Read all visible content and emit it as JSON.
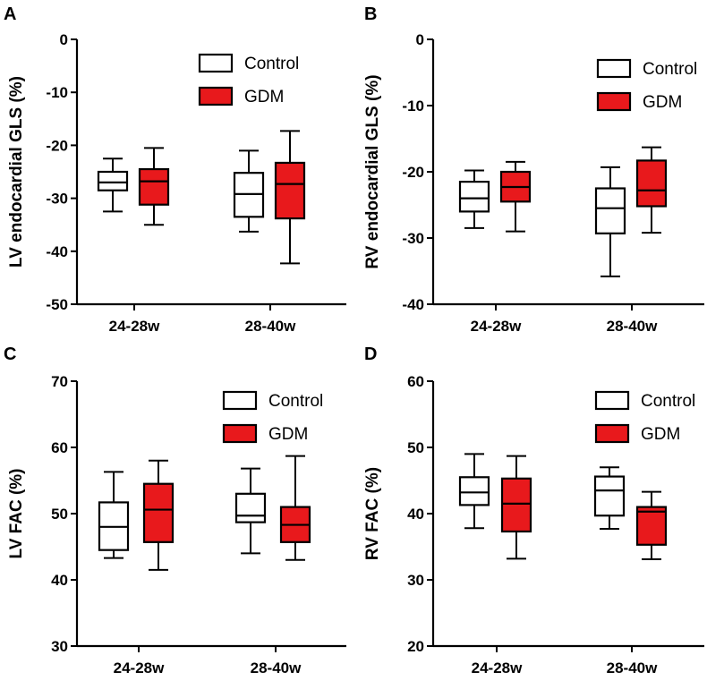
{
  "colors": {
    "control": "#ffffff",
    "gdm": "#e8191c",
    "stroke": "#000000"
  },
  "chart_data": [
    {
      "panel": "A",
      "type": "box",
      "ylabel": "LV endocardial GLS (%)",
      "ylim": [
        -50,
        0
      ],
      "yticks": [
        "0",
        "-10",
        "-20",
        "-30",
        "-40",
        "-50"
      ],
      "yticks_values": [
        0,
        -10,
        -20,
        -30,
        -40,
        -50
      ],
      "categories": [
        "24-28w",
        "28-40w"
      ],
      "legend": [
        "Control",
        "GDM"
      ],
      "series": [
        {
          "name": "Control",
          "boxes": [
            {
              "min": -32.5,
              "q1": -28.5,
              "median": -27,
              "q3": -25,
              "max": -22.5
            },
            {
              "min": -36.3,
              "q1": -33.5,
              "median": -29.2,
              "q3": -25.2,
              "max": -21
            }
          ]
        },
        {
          "name": "GDM",
          "boxes": [
            {
              "min": -35,
              "q1": -31.2,
              "median": -26.8,
              "q3": -24.5,
              "max": -20.5
            },
            {
              "min": -42.3,
              "q1": -33.8,
              "median": -27.3,
              "q3": -23.3,
              "max": -17.3
            }
          ]
        }
      ]
    },
    {
      "panel": "B",
      "type": "box",
      "ylabel": "RV endocardial GLS (%)",
      "ylim": [
        -40,
        0
      ],
      "yticks": [
        "0",
        "-10",
        "-20",
        "-30",
        "-40"
      ],
      "yticks_values": [
        0,
        -10,
        -20,
        -30,
        -40
      ],
      "categories": [
        "24-28w",
        "28-40w"
      ],
      "legend": [
        "Control",
        "GDM"
      ],
      "series": [
        {
          "name": "Control",
          "boxes": [
            {
              "min": -28.5,
              "q1": -26,
              "median": -24,
              "q3": -21.5,
              "max": -19.8
            },
            {
              "min": -35.8,
              "q1": -29.3,
              "median": -25.5,
              "q3": -22.5,
              "max": -19.3
            }
          ]
        },
        {
          "name": "GDM",
          "boxes": [
            {
              "min": -29,
              "q1": -24.5,
              "median": -22.3,
              "q3": -20,
              "max": -18.5
            },
            {
              "min": -29.2,
              "q1": -25.2,
              "median": -22.8,
              "q3": -18.3,
              "max": -16.3
            }
          ]
        }
      ]
    },
    {
      "panel": "C",
      "type": "box",
      "ylabel": "LV FAC (%)",
      "ylim": [
        30,
        70
      ],
      "yticks": [
        "30",
        "40",
        "50",
        "60",
        "70"
      ],
      "yticks_values": [
        30,
        40,
        50,
        60,
        70
      ],
      "categories": [
        "24-28w",
        "28-40w"
      ],
      "legend": [
        "Control",
        "GDM"
      ],
      "series": [
        {
          "name": "Control",
          "boxes": [
            {
              "min": 43.3,
              "q1": 44.5,
              "median": 48,
              "q3": 51.7,
              "max": 56.3
            },
            {
              "min": 44,
              "q1": 48.7,
              "median": 49.7,
              "q3": 53,
              "max": 56.8
            }
          ]
        },
        {
          "name": "GDM",
          "boxes": [
            {
              "min": 41.5,
              "q1": 45.7,
              "median": 50.6,
              "q3": 54.5,
              "max": 58
            },
            {
              "min": 43,
              "q1": 45.7,
              "median": 48.3,
              "q3": 51,
              "max": 58.7
            }
          ]
        }
      ]
    },
    {
      "panel": "D",
      "type": "box",
      "ylabel": "RV FAC (%)",
      "ylim": [
        20,
        60
      ],
      "yticks": [
        "20",
        "30",
        "40",
        "50",
        "60"
      ],
      "yticks_values": [
        20,
        30,
        40,
        50,
        60
      ],
      "categories": [
        "24-28w",
        "28-40w"
      ],
      "legend": [
        "Control",
        "GDM"
      ],
      "series": [
        {
          "name": "Control",
          "boxes": [
            {
              "min": 37.8,
              "q1": 41.3,
              "median": 43.2,
              "q3": 45.5,
              "max": 49
            },
            {
              "min": 37.7,
              "q1": 39.7,
              "median": 43.5,
              "q3": 45.6,
              "max": 47
            }
          ]
        },
        {
          "name": "GDM",
          "boxes": [
            {
              "min": 33.2,
              "q1": 37.3,
              "median": 41.5,
              "q3": 45.3,
              "max": 48.7
            },
            {
              "min": 33.1,
              "q1": 35.3,
              "median": 40.3,
              "q3": 41,
              "max": 43.3
            }
          ]
        }
      ]
    }
  ]
}
